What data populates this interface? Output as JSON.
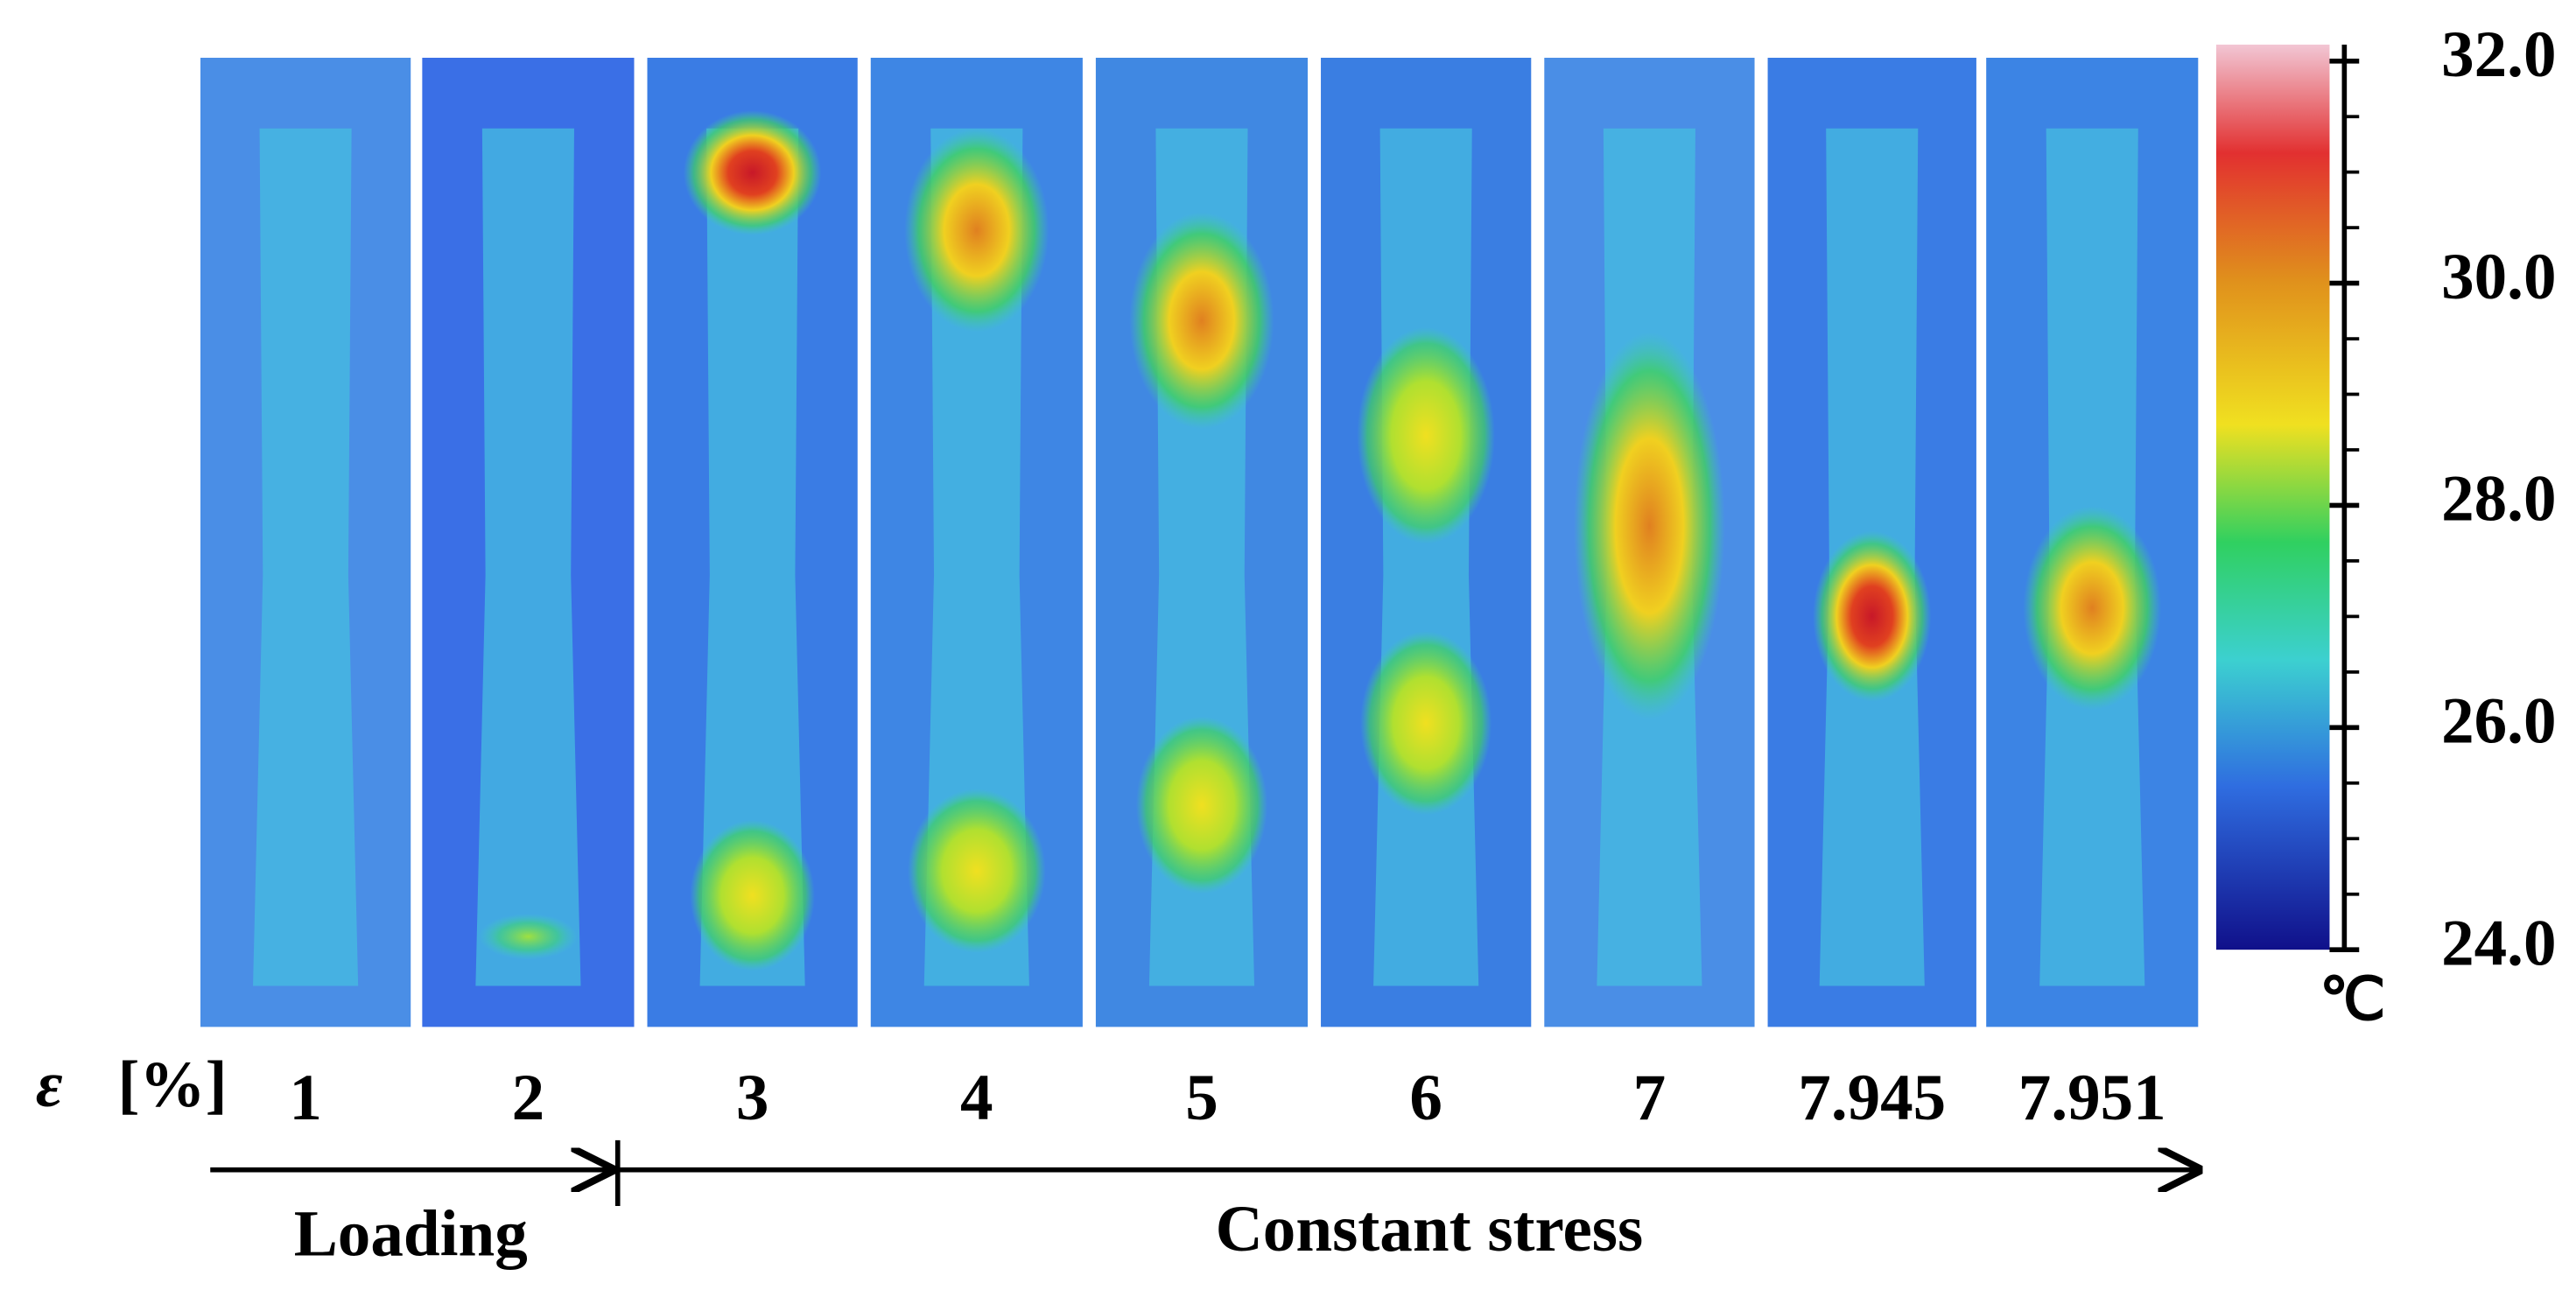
{
  "panels": [
    {
      "strain": "1"
    },
    {
      "strain": "2"
    },
    {
      "strain": "3"
    },
    {
      "strain": "4"
    },
    {
      "strain": "5"
    },
    {
      "strain": "6"
    },
    {
      "strain": "7"
    },
    {
      "strain": "7.945"
    },
    {
      "strain": "7.951"
    }
  ],
  "strain_label": {
    "symbol": "ε",
    "unit": "[%]"
  },
  "colorbar": {
    "range": [
      24,
      32
    ],
    "ticks": [
      {
        "value": 32,
        "label": "32.0"
      },
      {
        "value": 30,
        "label": "30.0"
      },
      {
        "value": 28,
        "label": "28.0"
      },
      {
        "value": 26,
        "label": "26.0"
      },
      {
        "value": 24,
        "label": "24.0"
      }
    ],
    "unit": "℃"
  },
  "phases": {
    "loading": "Loading",
    "constant": "Constant stress"
  }
}
